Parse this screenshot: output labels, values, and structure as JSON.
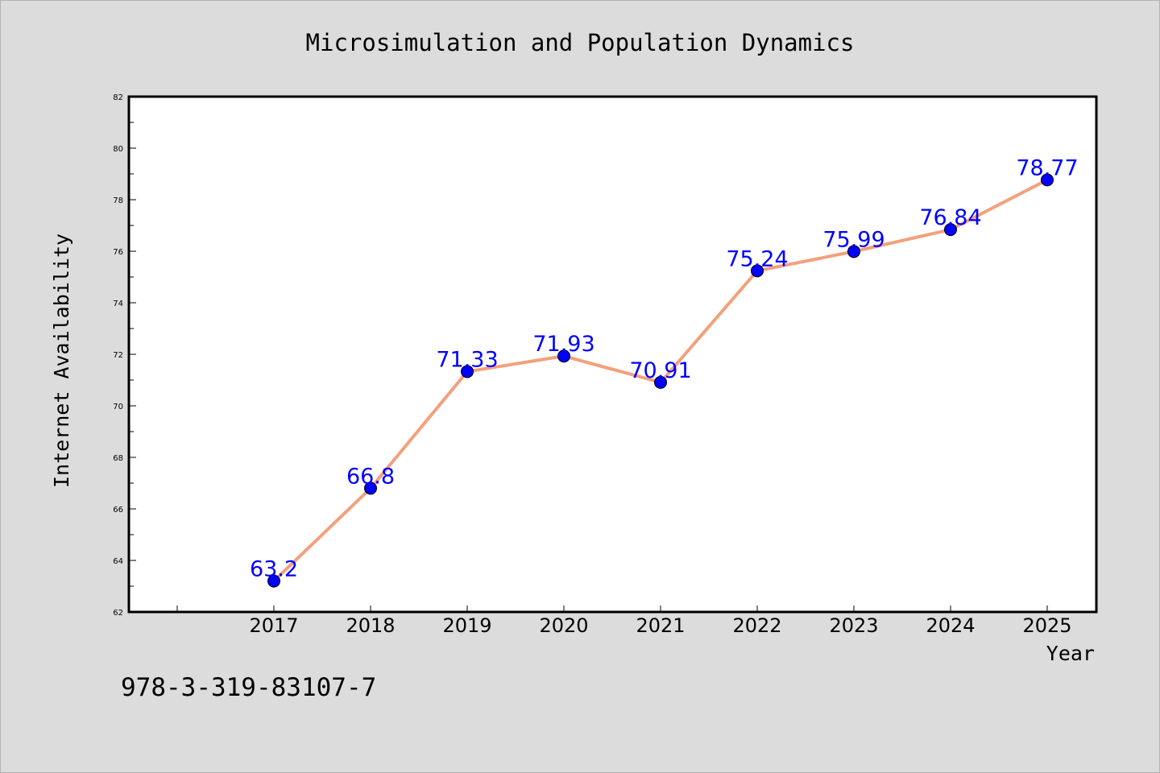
{
  "chart_data": {
    "type": "line",
    "title": "Microsimulation and Population Dynamics",
    "xlabel": "Year",
    "ylabel": "Internet Availability",
    "categories": [
      "2017",
      "2018",
      "2019",
      "2020",
      "2021",
      "2022",
      "2023",
      "2024",
      "2025"
    ],
    "series": [
      {
        "values": [
          63.2,
          66.8,
          71.33,
          71.93,
          70.91,
          75.24,
          75.99,
          76.84,
          78.77
        ],
        "data_labels": [
          "63.2",
          "66.8",
          "71.33",
          "71.93",
          "70.91",
          "75.24",
          "75.99",
          "76.84",
          "78.77"
        ],
        "line_color": "#f4a07c",
        "marker_color": "#0000ff"
      }
    ],
    "ylim": [
      62,
      82
    ],
    "yticks": [
      62,
      64,
      66,
      68,
      70,
      72,
      74,
      76,
      78,
      80,
      82
    ],
    "grid": false,
    "label_color": "#0000ff"
  },
  "footer_text": "978-3-319-83107-7",
  "colors": {
    "background": "#dcdcdc",
    "plot_background": "#ffffff",
    "axis": "#000000"
  }
}
